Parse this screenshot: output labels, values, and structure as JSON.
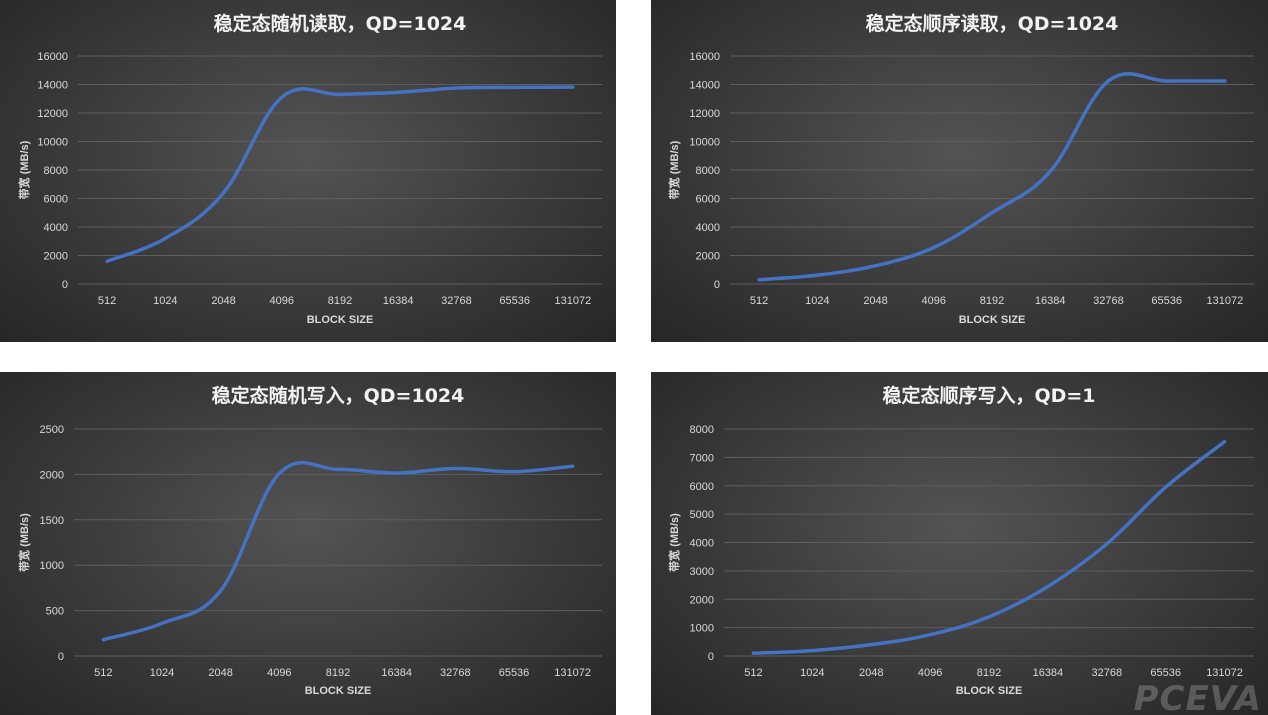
{
  "colors": {
    "line": "#4472c4",
    "grid": "#5e5e5e",
    "text": "#d9d9d9",
    "title": "#f2f2f2"
  },
  "watermark": "PCEVA",
  "chart_data": [
    {
      "type": "line",
      "title": "稳定态随机读取，QD=1024",
      "xlabel": "BLOCK SIZE",
      "ylabel": "带宽 (MB/s)",
      "categories": [
        "512",
        "1024",
        "2048",
        "4096",
        "8192",
        "16384",
        "32768",
        "65536",
        "131072"
      ],
      "yticks": [
        0,
        2000,
        4000,
        6000,
        8000,
        10000,
        12000,
        14000,
        16000
      ],
      "ylim": [
        0,
        16000
      ],
      "grid": true,
      "series": [
        {
          "values": [
            1600,
            3200,
            6400,
            13100,
            13300,
            13450,
            13750,
            13800,
            13820
          ]
        }
      ]
    },
    {
      "type": "line",
      "title": "稳定态顺序读取，QD=1024",
      "xlabel": "BLOCK SIZE",
      "ylabel": "带宽 (MB/s)",
      "categories": [
        "512",
        "1024",
        "2048",
        "4096",
        "8192",
        "16384",
        "32768",
        "65536",
        "131072"
      ],
      "yticks": [
        0,
        2000,
        4000,
        6000,
        8000,
        10000,
        12000,
        14000,
        16000
      ],
      "ylim": [
        0,
        16000
      ],
      "grid": true,
      "series": [
        {
          "values": [
            300,
            620,
            1280,
            2560,
            5000,
            7900,
            14250,
            14250,
            14250
          ]
        }
      ]
    },
    {
      "type": "line",
      "title": "稳定态随机写入，QD=1024",
      "xlabel": "BLOCK SIZE",
      "ylabel": "带宽 (MB/s)",
      "categories": [
        "512",
        "1024",
        "2048",
        "4096",
        "8192",
        "16384",
        "32768",
        "65536",
        "131072"
      ],
      "yticks": [
        0,
        500,
        1000,
        1500,
        2000,
        2500
      ],
      "ylim": [
        0,
        2500
      ],
      "grid": true,
      "series": [
        {
          "values": [
            180,
            360,
            720,
            2010,
            2055,
            2015,
            2065,
            2030,
            2090
          ]
        }
      ]
    },
    {
      "type": "line",
      "title": "稳定态顺序写入，QD=1",
      "xlabel": "BLOCK SIZE",
      "ylabel": "带宽 (MB/s)",
      "categories": [
        "512",
        "1024",
        "2048",
        "4096",
        "8192",
        "16384",
        "32768",
        "65536",
        "131072"
      ],
      "yticks": [
        0,
        1000,
        2000,
        3000,
        4000,
        5000,
        6000,
        7000,
        8000
      ],
      "ylim": [
        0,
        8000
      ],
      "grid": true,
      "series": [
        {
          "values": [
            100,
            190,
            400,
            750,
            1380,
            2450,
            3950,
            5950,
            7550
          ]
        }
      ]
    }
  ]
}
